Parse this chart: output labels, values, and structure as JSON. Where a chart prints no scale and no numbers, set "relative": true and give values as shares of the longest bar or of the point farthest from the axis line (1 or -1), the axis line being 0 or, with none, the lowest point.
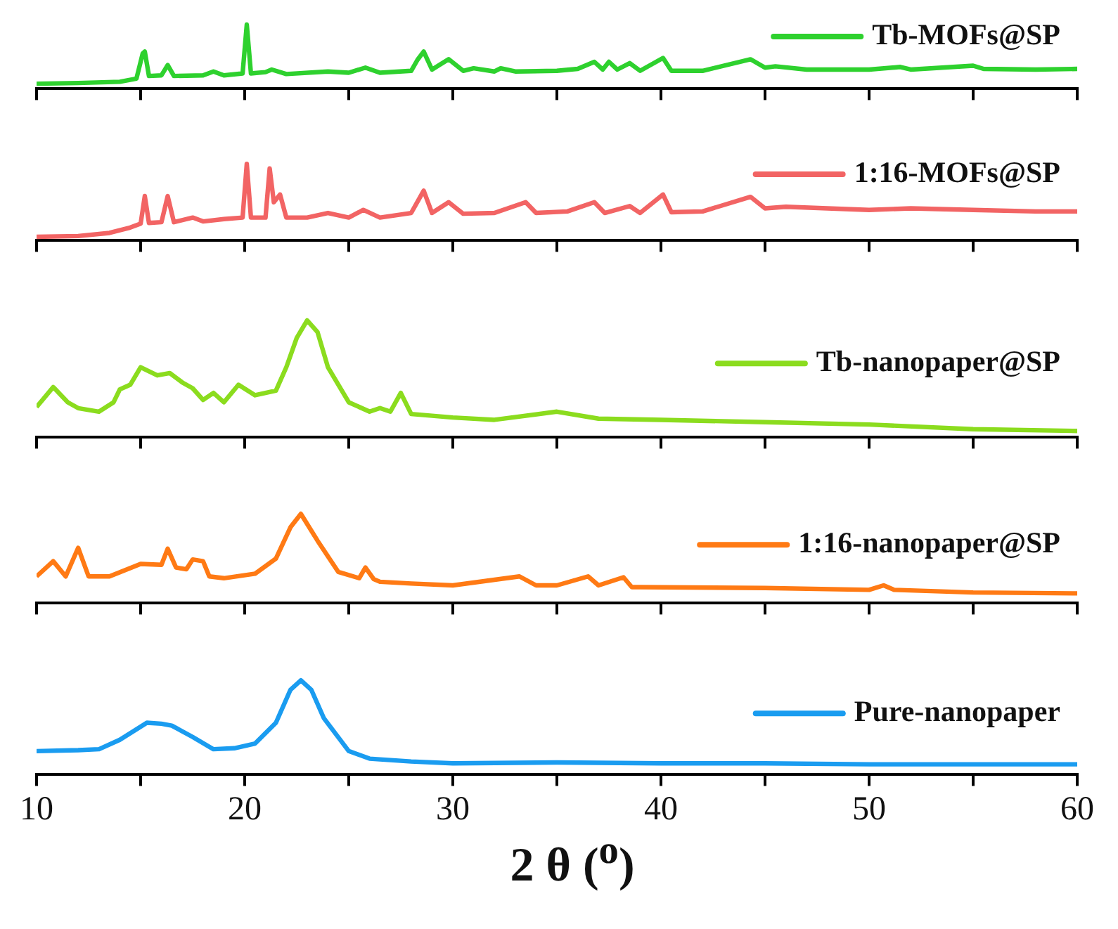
{
  "chart_data": [
    {
      "type": "line",
      "relative": true,
      "xlim": [
        10,
        60
      ],
      "xticks": [
        {
          "value": 10,
          "label": null
        },
        {
          "value": 15,
          "label": null
        },
        {
          "value": 20,
          "label": null
        },
        {
          "value": 25,
          "label": null
        },
        {
          "value": 30,
          "label": null
        },
        {
          "value": 35,
          "label": null
        },
        {
          "value": 40,
          "label": null
        },
        {
          "value": 45,
          "label": null
        },
        {
          "value": 50,
          "label": null
        },
        {
          "value": 55,
          "label": null
        },
        {
          "value": 60,
          "label": null
        }
      ],
      "tick_labels": false,
      "legend": "top right",
      "series": [
        {
          "name": "Tb-MOFs@SP",
          "color": "#2ed12e",
          "x": [
            10,
            12,
            14,
            14.8,
            15.1,
            15.2,
            15.4,
            16,
            16.3,
            16.6,
            18,
            18.5,
            19,
            19.9,
            20.1,
            20.3,
            21,
            21.3,
            22,
            24,
            25,
            25.8,
            26.5,
            28,
            28.3,
            28.6,
            29,
            29.8,
            30.5,
            31,
            32,
            32.3,
            33,
            35,
            36,
            36.8,
            37.2,
            37.5,
            37.9,
            38.5,
            39,
            40.1,
            40.5,
            42,
            44.3,
            45,
            45.5,
            47,
            50,
            51.5,
            52,
            55,
            55.5,
            58,
            60
          ],
          "values": [
            0.08,
            0.09,
            0.11,
            0.16,
            0.55,
            0.58,
            0.2,
            0.21,
            0.37,
            0.2,
            0.21,
            0.27,
            0.21,
            0.24,
            1,
            0.24,
            0.26,
            0.3,
            0.23,
            0.27,
            0.25,
            0.33,
            0.25,
            0.28,
            0.45,
            0.58,
            0.3,
            0.46,
            0.28,
            0.32,
            0.27,
            0.32,
            0.27,
            0.28,
            0.31,
            0.42,
            0.3,
            0.42,
            0.3,
            0.4,
            0.28,
            0.48,
            0.28,
            0.28,
            0.46,
            0.33,
            0.35,
            0.3,
            0.3,
            0.34,
            0.3,
            0.36,
            0.31,
            0.3,
            0.31
          ]
        }
      ]
    },
    {
      "type": "line",
      "relative": true,
      "xlim": [
        10,
        60
      ],
      "xticks": [
        {
          "value": 10,
          "label": null
        },
        {
          "value": 15,
          "label": null
        },
        {
          "value": 20,
          "label": null
        },
        {
          "value": 25,
          "label": null
        },
        {
          "value": 30,
          "label": null
        },
        {
          "value": 35,
          "label": null
        },
        {
          "value": 40,
          "label": null
        },
        {
          "value": 45,
          "label": null
        },
        {
          "value": 50,
          "label": null
        },
        {
          "value": 55,
          "label": null
        },
        {
          "value": 60,
          "label": null
        }
      ],
      "tick_labels": false,
      "legend": "top right",
      "series": [
        {
          "name": "1:16-MOFs@SP",
          "color": "#f26464",
          "x": [
            10,
            12,
            13.5,
            14.5,
            15,
            15.2,
            15.4,
            16,
            16.3,
            16.6,
            17.5,
            18,
            19,
            19.9,
            20.1,
            20.3,
            21,
            21.2,
            21.4,
            21.7,
            22,
            23,
            24,
            25,
            25.7,
            26.5,
            28,
            28.6,
            29,
            29.8,
            30.5,
            32,
            33.5,
            34,
            35.5,
            36.8,
            37.3,
            38.5,
            39,
            40.1,
            40.5,
            42,
            44.3,
            45,
            46,
            48,
            50,
            52,
            55,
            58,
            60
          ],
          "values": [
            0.05,
            0.06,
            0.1,
            0.17,
            0.22,
            0.58,
            0.23,
            0.24,
            0.58,
            0.24,
            0.3,
            0.25,
            0.28,
            0.3,
            1,
            0.3,
            0.3,
            0.94,
            0.5,
            0.6,
            0.3,
            0.3,
            0.36,
            0.3,
            0.4,
            0.3,
            0.36,
            0.65,
            0.36,
            0.5,
            0.35,
            0.36,
            0.5,
            0.36,
            0.38,
            0.5,
            0.36,
            0.45,
            0.36,
            0.6,
            0.37,
            0.38,
            0.57,
            0.42,
            0.44,
            0.42,
            0.4,
            0.42,
            0.4,
            0.38,
            0.38
          ]
        }
      ]
    },
    {
      "type": "line",
      "relative": true,
      "xlim": [
        10,
        60
      ],
      "xticks": [
        {
          "value": 10,
          "label": null
        },
        {
          "value": 15,
          "label": null
        },
        {
          "value": 20,
          "label": null
        },
        {
          "value": 25,
          "label": null
        },
        {
          "value": 30,
          "label": null
        },
        {
          "value": 35,
          "label": null
        },
        {
          "value": 40,
          "label": null
        },
        {
          "value": 45,
          "label": null
        },
        {
          "value": 50,
          "label": null
        },
        {
          "value": 55,
          "label": null
        },
        {
          "value": 60,
          "label": null
        }
      ],
      "tick_labels": false,
      "legend": "right",
      "series": [
        {
          "name": "Tb-nanopaper@SP",
          "color": "#8bdc1e",
          "x": [
            10,
            10.8,
            11.5,
            12,
            13,
            13.7,
            14,
            14.5,
            15,
            15.8,
            16.4,
            17,
            17.5,
            18,
            18.5,
            19,
            19.7,
            20.5,
            21.5,
            22,
            22.5,
            23,
            23.5,
            24,
            25,
            26,
            26.5,
            27,
            27.5,
            28,
            30,
            32,
            35,
            37,
            40,
            45,
            50,
            55,
            60
          ],
          "values": [
            0.26,
            0.43,
            0.3,
            0.25,
            0.22,
            0.3,
            0.41,
            0.45,
            0.6,
            0.53,
            0.55,
            0.47,
            0.42,
            0.32,
            0.38,
            0.3,
            0.45,
            0.36,
            0.4,
            0.6,
            0.85,
            1,
            0.9,
            0.6,
            0.3,
            0.22,
            0.25,
            0.22,
            0.38,
            0.2,
            0.17,
            0.15,
            0.22,
            0.16,
            0.15,
            0.13,
            0.11,
            0.07,
            0.055
          ]
        }
      ]
    },
    {
      "type": "line",
      "relative": true,
      "xlim": [
        10,
        60
      ],
      "xticks": [
        {
          "value": 10,
          "label": null
        },
        {
          "value": 15,
          "label": null
        },
        {
          "value": 20,
          "label": null
        },
        {
          "value": 25,
          "label": null
        },
        {
          "value": 30,
          "label": null
        },
        {
          "value": 35,
          "label": null
        },
        {
          "value": 40,
          "label": null
        },
        {
          "value": 45,
          "label": null
        },
        {
          "value": 50,
          "label": null
        },
        {
          "value": 55,
          "label": null
        },
        {
          "value": 60,
          "label": null
        }
      ],
      "tick_labels": false,
      "legend": "right",
      "series": [
        {
          "name": "1:16-nanopaper@SP",
          "color": "#ff7a14",
          "x": [
            10,
            10.8,
            11.4,
            12,
            12.5,
            13.5,
            15,
            16,
            16.3,
            16.7,
            17.2,
            17.5,
            18,
            18.3,
            19,
            20.5,
            21.5,
            22.2,
            22.7,
            23.5,
            24.5,
            25.5,
            25.8,
            26.2,
            26.5,
            28,
            30,
            33.2,
            34,
            35,
            36.5,
            37,
            38.2,
            38.6,
            39,
            45,
            50,
            50.7,
            51.2,
            55,
            60
          ],
          "values": [
            0.3,
            0.47,
            0.3,
            0.62,
            0.3,
            0.3,
            0.44,
            0.43,
            0.61,
            0.4,
            0.38,
            0.49,
            0.47,
            0.3,
            0.28,
            0.33,
            0.5,
            0.85,
            1,
            0.7,
            0.35,
            0.28,
            0.4,
            0.27,
            0.24,
            0.22,
            0.2,
            0.3,
            0.2,
            0.2,
            0.3,
            0.2,
            0.29,
            0.18,
            0.18,
            0.17,
            0.15,
            0.2,
            0.15,
            0.12,
            0.11
          ]
        }
      ]
    },
    {
      "type": "line",
      "relative": true,
      "xlim": [
        10,
        60
      ],
      "xticks": [
        10,
        {
          "value": 15,
          "label": null
        },
        20,
        {
          "value": 25,
          "label": null
        },
        30,
        {
          "value": 35,
          "label": null
        },
        40,
        {
          "value": 45,
          "label": null
        },
        50,
        {
          "value": 55,
          "label": null
        },
        60
      ],
      "tick_labels": "x",
      "legend": "right",
      "xlabel": "2 θ ($^{o}$)",
      "series": [
        {
          "name": "Pure-nanopaper",
          "color": "#1a9cf0",
          "x": [
            10,
            12,
            13,
            14,
            15.3,
            16,
            16.5,
            17.5,
            18.5,
            19.5,
            20.5,
            21.5,
            22.2,
            22.7,
            23.2,
            23.8,
            25,
            26,
            28,
            30,
            35,
            40,
            45,
            50,
            55,
            60
          ],
          "values": [
            0.25,
            0.26,
            0.27,
            0.37,
            0.55,
            0.54,
            0.52,
            0.4,
            0.27,
            0.28,
            0.33,
            0.55,
            0.9,
            1,
            0.9,
            0.6,
            0.25,
            0.17,
            0.14,
            0.12,
            0.13,
            0.12,
            0.12,
            0.11,
            0.11,
            0.11
          ]
        }
      ]
    }
  ]
}
